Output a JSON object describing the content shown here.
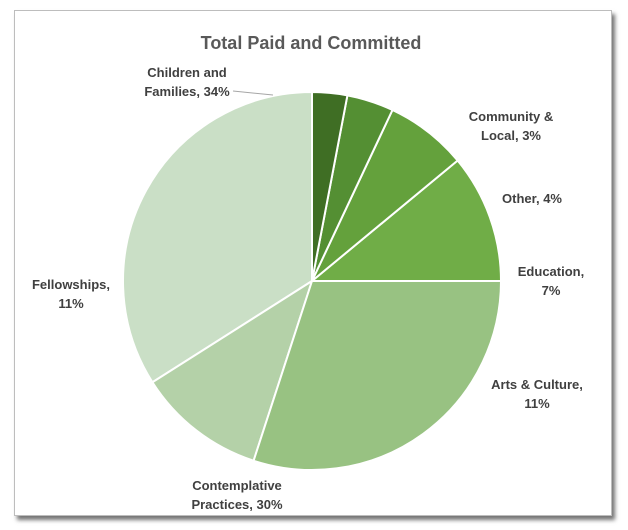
{
  "chart_data": {
    "type": "pie",
    "title": "Total Paid and Committed",
    "start_angle_deg": 90,
    "direction": "counterclockwise",
    "slices": [
      {
        "label_lines": [
          "Children and",
          "Families, 34%"
        ],
        "category": "Children and Families",
        "value": 34,
        "color": "#cadfc6",
        "label_position": "outside-leader"
      },
      {
        "label_lines": [
          "Fellowships,",
          "11%"
        ],
        "category": "Fellowships",
        "value": 11,
        "color": "#b4d1a8",
        "label_position": "outside"
      },
      {
        "label_lines": [
          "Contemplative",
          "Practices, 30%"
        ],
        "category": "Contemplative Practices",
        "value": 30,
        "color": "#98c282",
        "label_position": "outside"
      },
      {
        "label_lines": [
          "Arts & Culture,",
          "11%"
        ],
        "category": "Arts & Culture",
        "value": 11,
        "color": "#70ad47",
        "label_position": "outside"
      },
      {
        "label_lines": [
          "Education,",
          "7%"
        ],
        "category": "Education",
        "value": 7,
        "color": "#64a13c",
        "label_position": "outside"
      },
      {
        "label_lines": [
          "Other, 4%"
        ],
        "category": "Other",
        "value": 4,
        "color": "#548f33",
        "label_position": "outside"
      },
      {
        "label_lines": [
          "Community &",
          "Local, 3%"
        ],
        "category": "Community & Local",
        "value": 3,
        "color": "#3f6e24",
        "label_position": "outside"
      }
    ],
    "legend": "none",
    "slice_border_color": "#ffffff"
  }
}
